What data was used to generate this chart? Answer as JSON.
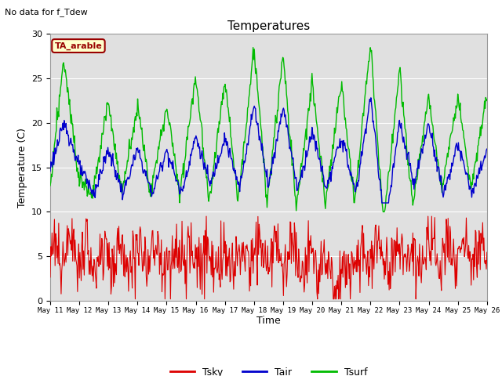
{
  "title": "Temperatures",
  "subtitle": "No data for f_Tdew",
  "xlabel": "Time",
  "ylabel": "Temperature (C)",
  "annotation": "TA_arable",
  "ylim": [
    0,
    30
  ],
  "tsky_color": "#dd0000",
  "tair_color": "#0000cc",
  "tsurf_color": "#00bb00",
  "plot_bg_color": "#e0e0e0",
  "fig_bg_color": "#ffffff",
  "x_tick_labels": [
    "May 11",
    "May 12",
    "May 13",
    "May 14",
    "May 15",
    "May 16",
    "May 17",
    "May 18",
    "May 19",
    "May 20",
    "May 21",
    "May 22",
    "May 23",
    "May 24",
    "May 25",
    "May 26"
  ],
  "n_days": 15,
  "pts_per_day": 48
}
